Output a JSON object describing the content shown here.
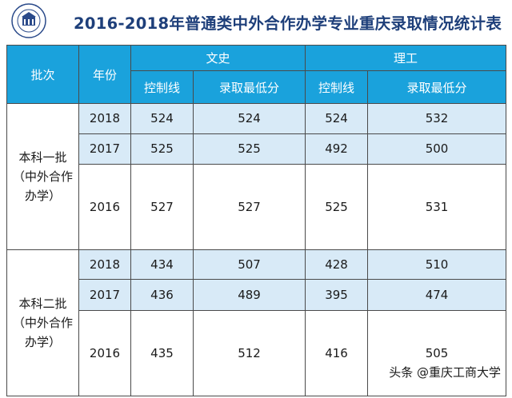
{
  "title": "2016-2018年普通类中外合作办学专业重庆录取情况统计表",
  "logo": {
    "icon": "university-seal-icon",
    "text": "重庆工商大学"
  },
  "header": {
    "batch": "批次",
    "year": "年份",
    "wenshi": "文史",
    "ligong": "理工",
    "control_line": "控制线",
    "min_score": "录取最低分"
  },
  "groups": [
    {
      "label_lines": [
        "本科一批",
        "（中外合作",
        "办学）"
      ],
      "rows": [
        {
          "year": "2018",
          "ws_control": "524",
          "ws_min": "524",
          "lg_control": "524",
          "lg_min": "532"
        },
        {
          "year": "2017",
          "ws_control": "525",
          "ws_min": "525",
          "lg_control": "492",
          "lg_min": "500"
        },
        {
          "year": "2016",
          "ws_control": "527",
          "ws_min": "527",
          "lg_control": "525",
          "lg_min": "531"
        }
      ]
    },
    {
      "label_lines": [
        "本科二批",
        "（中外合作",
        "办学）"
      ],
      "rows": [
        {
          "year": "2018",
          "ws_control": "434",
          "ws_min": "507",
          "lg_control": "428",
          "lg_min": "510"
        },
        {
          "year": "2017",
          "ws_control": "436",
          "ws_min": "489",
          "lg_control": "395",
          "lg_min": "474"
        },
        {
          "year": "2016",
          "ws_control": "435",
          "ws_min": "512",
          "lg_control": "416",
          "lg_min": "505"
        }
      ]
    }
  ],
  "watermark": "头条 @重庆工商大学",
  "colors": {
    "header_bg": "#1aa2dc",
    "band_bg": "#d8eaf7",
    "title": "#1e3f7a"
  }
}
